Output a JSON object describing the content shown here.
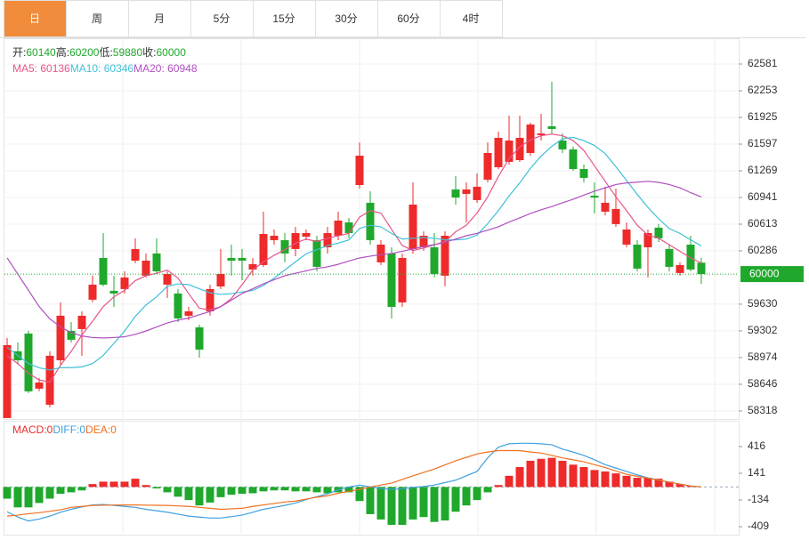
{
  "tabs": [
    "日",
    "周",
    "月",
    "5分",
    "15分",
    "30分",
    "60分",
    "4时"
  ],
  "active_tab": 0,
  "chart_data": [
    {
      "type": "candlestick",
      "info": [
        {
          "label": "开:",
          "value": 60140
        },
        {
          "label": "高:",
          "value": 60200
        },
        {
          "label": "低:",
          "value": 59880
        },
        {
          "label": "收:",
          "value": 60000
        }
      ],
      "up_color": "#ee2a2a",
      "down_color": "#1fa82c",
      "open": [
        58231,
        59051,
        59269,
        58592,
        58395,
        58941,
        59302,
        59324,
        59685,
        60198,
        59794,
        59816,
        60165,
        59980,
        60253,
        59870,
        59761,
        59488,
        59346,
        59542,
        59848,
        60198,
        60198,
        60056,
        60111,
        60417,
        60417,
        60308,
        60460,
        60417,
        60329,
        60471,
        60635,
        61094,
        60876,
        60144,
        60253,
        59652,
        60308,
        60329,
        60329,
        59980,
        61040,
        60985,
        60909,
        61160,
        61313,
        61379,
        61400,
        61488,
        61707,
        61816,
        61641,
        61532,
        61291,
        60963,
        60767,
        60614,
        60362,
        60362,
        60329,
        60570,
        60308,
        60013,
        60362,
        60140
      ],
      "high": [
        59215,
        59160,
        59302,
        58723,
        59051,
        59652,
        59411,
        59542,
        59980,
        60504,
        59980,
        60034,
        60439,
        60253,
        60439,
        60034,
        59816,
        59597,
        59378,
        59870,
        60308,
        60362,
        60308,
        60198,
        60767,
        60548,
        60504,
        60581,
        60548,
        60471,
        60581,
        60767,
        60690,
        61619,
        61018,
        60417,
        60329,
        60253,
        61127,
        60526,
        60504,
        60526,
        61204,
        61127,
        61237,
        61619,
        61750,
        61947,
        61947,
        61860,
        61969,
        62362,
        61728,
        61565,
        61346,
        61127,
        61073,
        61051,
        60635,
        60417,
        60548,
        60614,
        60362,
        60144,
        60471,
        60200
      ],
      "low": [
        58231,
        58887,
        58537,
        58559,
        58362,
        58887,
        59160,
        58996,
        59652,
        59849,
        59597,
        59761,
        60133,
        59958,
        60001,
        59706,
        59411,
        59433,
        58974,
        59488,
        59816,
        59980,
        59925,
        59980,
        60089,
        60362,
        60144,
        60220,
        60417,
        60034,
        60253,
        60417,
        60439,
        61051,
        60362,
        60111,
        59455,
        59597,
        60253,
        60286,
        59958,
        59849,
        60854,
        60635,
        60876,
        61127,
        61291,
        61346,
        61379,
        61455,
        61641,
        61728,
        61488,
        61269,
        61127,
        60745,
        60723,
        60581,
        60329,
        60034,
        59958,
        60395,
        60034,
        59980,
        60034,
        59880
      ],
      "close": [
        59127,
        58941,
        58559,
        58668,
        58996,
        59488,
        59193,
        59488,
        59870,
        59870,
        59761,
        59958,
        60308,
        60165,
        60034,
        60001,
        59455,
        59542,
        59072,
        59816,
        60001,
        60165,
        60165,
        60122,
        60493,
        60471,
        60253,
        60504,
        60504,
        60089,
        60504,
        60657,
        60504,
        61455,
        60417,
        60362,
        59597,
        60198,
        60854,
        60471,
        60001,
        60471,
        60941,
        61040,
        61073,
        61488,
        61674,
        61641,
        61674,
        61838,
        61728,
        61783,
        61532,
        61291,
        61182,
        60941,
        60876,
        60800,
        60548,
        60067,
        60504,
        60439,
        60089,
        60111,
        60056,
        60000
      ],
      "series": [
        {
          "name": "MA5: ",
          "color": "#e8548a",
          "last": 60136,
          "values": [
            58996,
            58900,
            58780,
            58700,
            58670,
            58880,
            59050,
            59250,
            59420,
            59600,
            59720,
            59800,
            59920,
            59980,
            60010,
            60050,
            59950,
            59760,
            59580,
            59560,
            59600,
            59700,
            59870,
            60050,
            60150,
            60230,
            60300,
            60380,
            60430,
            60400,
            60440,
            60470,
            60500,
            60700,
            60780,
            60750,
            60550,
            60350,
            60290,
            60320,
            60360,
            60400,
            60520,
            60600,
            60750,
            60950,
            61200,
            61420,
            61560,
            61650,
            61700,
            61720,
            61700,
            61640,
            61520,
            61330,
            61140,
            60950,
            60780,
            60600,
            60480,
            60440,
            60360,
            60280,
            60200,
            60136
          ]
        },
        {
          "name": "MA10: ",
          "color": "#3fc0d8",
          "last": 60346,
          "values": [
            59100,
            59000,
            58900,
            58850,
            58820,
            58850,
            58850,
            58860,
            58900,
            59000,
            59150,
            59300,
            59480,
            59620,
            59720,
            59850,
            59880,
            59870,
            59820,
            59770,
            59750,
            59760,
            59780,
            59800,
            59860,
            59950,
            60050,
            60150,
            60250,
            60300,
            60350,
            60380,
            60420,
            60560,
            60600,
            60580,
            60500,
            60430,
            60440,
            60450,
            60440,
            60420,
            60420,
            60430,
            60480,
            60620,
            60780,
            60960,
            61120,
            61300,
            61450,
            61570,
            61660,
            61680,
            61640,
            61580,
            61480,
            61320,
            61150,
            60980,
            60820,
            60680,
            60560,
            60500,
            60420,
            60346
          ]
        },
        {
          "name": "MA20: ",
          "color": "#b04fc0",
          "last": 60948,
          "values": [
            60200,
            60000,
            59800,
            59600,
            59450,
            59350,
            59280,
            59240,
            59220,
            59215,
            59220,
            59230,
            59260,
            59300,
            59350,
            59400,
            59433,
            59460,
            59500,
            59540,
            59600,
            59680,
            59761,
            59820,
            59880,
            59930,
            59980,
            60010,
            60040,
            60070,
            60089,
            60120,
            60160,
            60198,
            60220,
            60240,
            60253,
            60280,
            60310,
            60340,
            60362,
            60390,
            60430,
            60471,
            60500,
            60540,
            60581,
            60640,
            60690,
            60745,
            60790,
            60830,
            60876,
            60920,
            60970,
            61018,
            61060,
            61100,
            61120,
            61130,
            61140,
            61127,
            61100,
            61060,
            61000,
            60948
          ]
        }
      ],
      "last_price": 60000,
      "ylim": [
        58230,
        62876
      ],
      "yticks": [
        58318,
        58646,
        58974,
        59302,
        59630,
        60286,
        60613,
        60941,
        61269,
        61597,
        61925,
        62253,
        62581
      ]
    },
    {
      "type": "macd",
      "info": [
        {
          "label": "MACD:",
          "value": 0,
          "color": "#ee2a2a"
        },
        {
          "label": "DIFF:",
          "value": 0,
          "color": "#3fa0e0"
        },
        {
          "label": "DEA:",
          "value": 0,
          "color": "#f07020"
        }
      ],
      "up_color": "#ee2a2a",
      "down_color": "#1fa82c",
      "values": [
        -120,
        -210,
        -210,
        -165,
        -120,
        -70,
        -55,
        -35,
        30,
        55,
        55,
        55,
        85,
        20,
        -15,
        -55,
        -100,
        -135,
        -190,
        -160,
        -105,
        -80,
        -70,
        -65,
        -45,
        -35,
        -35,
        -45,
        -45,
        -55,
        -65,
        -55,
        -55,
        -145,
        -280,
        -335,
        -390,
        -390,
        -335,
        -310,
        -360,
        -345,
        -255,
        -190,
        -135,
        -55,
        20,
        115,
        205,
        270,
        290,
        300,
        270,
        230,
        205,
        175,
        160,
        140,
        115,
        95,
        95,
        85,
        55,
        30,
        10,
        0
      ],
      "series": [
        {
          "name": "DIFF",
          "color": "#3fa0e0",
          "values": [
            -255,
            -310,
            -350,
            -330,
            -300,
            -260,
            -230,
            -205,
            -185,
            -180,
            -190,
            -200,
            -210,
            -230,
            -245,
            -260,
            -280,
            -300,
            -310,
            -320,
            -320,
            -305,
            -290,
            -260,
            -230,
            -210,
            -190,
            -165,
            -130,
            -100,
            -70,
            -30,
            0,
            20,
            0,
            -15,
            -25,
            -20,
            -5,
            5,
            20,
            45,
            70,
            115,
            160,
            300,
            410,
            445,
            450,
            450,
            445,
            435,
            390,
            360,
            325,
            280,
            230,
            195,
            160,
            125,
            95,
            70,
            50,
            30,
            10,
            0
          ]
        },
        {
          "name": "DEA",
          "color": "#f07020",
          "values": [
            -300,
            -290,
            -275,
            -265,
            -250,
            -235,
            -210,
            -200,
            -190,
            -188,
            -186,
            -185,
            -185,
            -187,
            -189,
            -190,
            -195,
            -200,
            -210,
            -220,
            -230,
            -225,
            -220,
            -200,
            -185,
            -170,
            -155,
            -145,
            -125,
            -105,
            -90,
            -65,
            -45,
            -25,
            0,
            20,
            40,
            78,
            115,
            150,
            185,
            228,
            270,
            305,
            340,
            360,
            375,
            375,
            375,
            360,
            350,
            325,
            300,
            280,
            260,
            230,
            200,
            165,
            130,
            110,
            90,
            70,
            50,
            30,
            10,
            0
          ]
        }
      ],
      "ylim": [
        -482,
        636
      ],
      "yticks": [
        -409,
        -134,
        141,
        416
      ]
    }
  ]
}
